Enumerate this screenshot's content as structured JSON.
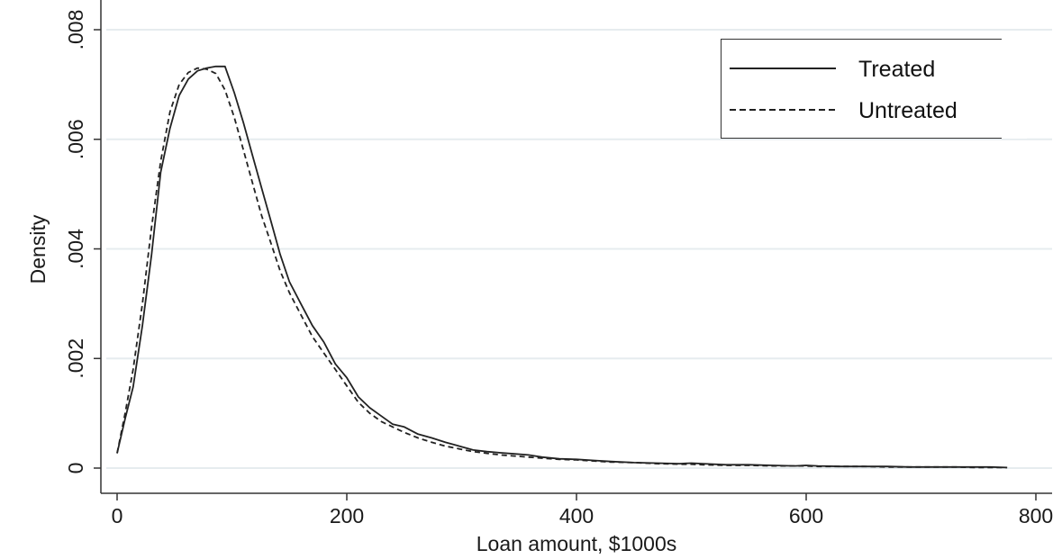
{
  "chart_data": {
    "type": "line",
    "title": "",
    "xlabel": "Loan amount, $1000s",
    "ylabel": "Density",
    "xlim": [
      0,
      800
    ],
    "ylim": [
      0,
      0.008
    ],
    "x_ticks": [
      {
        "value": 0,
        "label": "0"
      },
      {
        "value": 200,
        "label": "200"
      },
      {
        "value": 400,
        "label": "400"
      },
      {
        "value": 600,
        "label": "600"
      },
      {
        "value": 800,
        "label": "800"
      }
    ],
    "y_ticks": [
      {
        "value": 0,
        "label": "0"
      },
      {
        "value": 0.002,
        "label": ".002"
      },
      {
        "value": 0.004,
        "label": ".004"
      },
      {
        "value": 0.006,
        "label": ".006"
      },
      {
        "value": 0.008,
        "label": ".008"
      }
    ],
    "grid": "horizontal",
    "legend_position": "top-right",
    "series": [
      {
        "name": "Treated",
        "style": "solid",
        "color": "#222222",
        "x": [
          0,
          7,
          14,
          22,
          30,
          38,
          46,
          54,
          62,
          70,
          78,
          86,
          94,
          102,
          110,
          118,
          126,
          134,
          142,
          150,
          160,
          170,
          180,
          190,
          200,
          210,
          220,
          230,
          240,
          250,
          262,
          274,
          286,
          298,
          310,
          322,
          334,
          346,
          358,
          370,
          385,
          400,
          415,
          430,
          450,
          470,
          490,
          500,
          510,
          530,
          550,
          570,
          590,
          600,
          610,
          630,
          650,
          670,
          690,
          710,
          730,
          750,
          760,
          775
        ],
        "y": [
          0.00027,
          0.0009,
          0.00148,
          0.0026,
          0.0039,
          0.0054,
          0.0062,
          0.0068,
          0.0071,
          0.00725,
          0.0073,
          0.00733,
          0.00733,
          0.00685,
          0.0063,
          0.0057,
          0.0051,
          0.0045,
          0.0039,
          0.0034,
          0.003,
          0.0026,
          0.0023,
          0.0019,
          0.00165,
          0.0013,
          0.0011,
          0.00095,
          0.0008,
          0.00075,
          0.00062,
          0.00055,
          0.00047,
          0.0004,
          0.00033,
          0.0003,
          0.00028,
          0.00026,
          0.00024,
          0.0002,
          0.00017,
          0.00016,
          0.00014,
          0.00012,
          0.0001,
          9e-05,
          8e-05,
          9e-05,
          8e-05,
          6e-05,
          6e-05,
          5e-05,
          4e-05,
          5e-05,
          4e-05,
          3e-05,
          3e-05,
          3e-05,
          2e-05,
          2e-05,
          2e-05,
          2e-05,
          2e-05,
          1e-05
        ]
      },
      {
        "name": "Untreated",
        "style": "dashed",
        "color": "#222222",
        "x": [
          0,
          7,
          14,
          22,
          30,
          38,
          46,
          54,
          62,
          70,
          78,
          86,
          94,
          102,
          110,
          118,
          126,
          134,
          142,
          150,
          160,
          170,
          180,
          190,
          200,
          210,
          220,
          230,
          240,
          250,
          262,
          274,
          286,
          298,
          310,
          322,
          334,
          346,
          358,
          370,
          385,
          400,
          415,
          430,
          450,
          470,
          490,
          500,
          510,
          530,
          550,
          570,
          590,
          600,
          610,
          630,
          650,
          670,
          690,
          710,
          730,
          750,
          760,
          775
        ],
        "y": [
          0.00027,
          0.001,
          0.0018,
          0.003,
          0.0044,
          0.0056,
          0.0065,
          0.007,
          0.00722,
          0.0073,
          0.00728,
          0.0072,
          0.0069,
          0.0064,
          0.0058,
          0.0052,
          0.0046,
          0.0041,
          0.0036,
          0.0032,
          0.0028,
          0.0024,
          0.0021,
          0.0018,
          0.0015,
          0.0012,
          0.001,
          0.00085,
          0.00075,
          0.00065,
          0.00055,
          0.00047,
          0.0004,
          0.00035,
          0.0003,
          0.00027,
          0.00024,
          0.00022,
          0.0002,
          0.00018,
          0.00016,
          0.00015,
          0.00013,
          0.00011,
          0.0001,
          8e-05,
          7e-05,
          7e-05,
          6e-05,
          5e-05,
          5e-05,
          4e-05,
          4e-05,
          4e-05,
          3e-05,
          3e-05,
          3e-05,
          2e-05,
          2e-05,
          2e-05,
          2e-05,
          1e-05,
          1e-05,
          1e-05
        ]
      }
    ],
    "colors": {
      "background": "#ffffff",
      "plot_background": "#ffffff",
      "gridline": "#e6ecef",
      "axis": "#333333"
    }
  }
}
